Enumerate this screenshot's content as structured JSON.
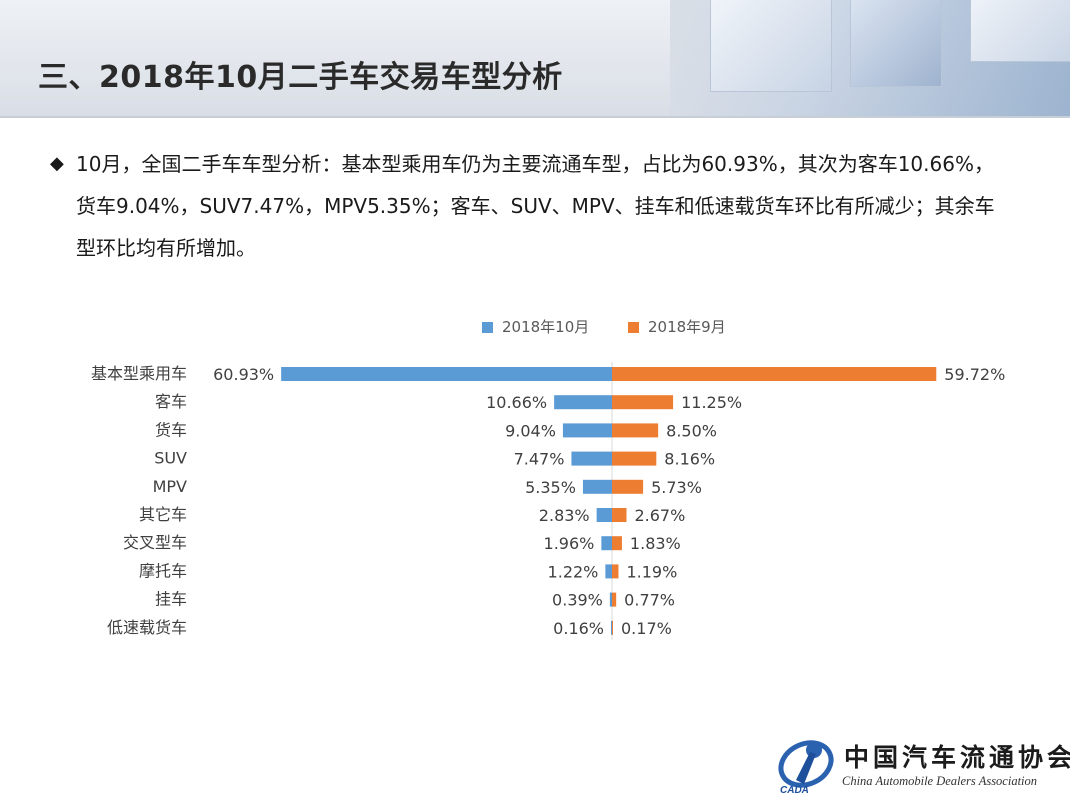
{
  "page": {
    "title": "三、2018年10月二手车交易车型分析",
    "summary": "10月，全国二手车车型分析：基本型乘用车仍为主要流通车型，占比为60.93%，其次为客车10.66%，货车9.04%，SUV7.47%，MPV5.35%；客车、SUV、MPV、挂车和低速载货车环比有所减少；其余车型环比均有所增加。",
    "bullet": "◆"
  },
  "logo": {
    "name_cn": "中国汽车流通协会",
    "name_en": "China Automobile Dealers Association",
    "abbr": "CADA"
  },
  "colors": {
    "oct": "#5b9bd5",
    "sep": "#ed7d31"
  },
  "chart_data": {
    "type": "bar",
    "orientation": "horizontal-diverging",
    "categories": [
      "基本型乘用车",
      "客车",
      "货车",
      "SUV",
      "MPV",
      "其它车",
      "交叉型车",
      "摩托车",
      "挂车",
      "低速载货车"
    ],
    "series": [
      {
        "name": "2018年10月",
        "values": [
          60.93,
          10.66,
          9.04,
          7.47,
          5.35,
          2.83,
          1.96,
          1.22,
          0.39,
          0.16
        ],
        "labels": [
          "60.93%",
          "10.66%",
          "9.04%",
          "7.47%",
          "5.35%",
          "2.83%",
          "1.96%",
          "1.22%",
          "0.39%",
          "0.16%"
        ],
        "side": "left"
      },
      {
        "name": "2018年9月",
        "values": [
          59.72,
          11.25,
          8.5,
          8.16,
          5.73,
          2.67,
          1.83,
          1.19,
          0.77,
          0.17
        ],
        "labels": [
          "59.72%",
          "11.25%",
          "8.50%",
          "8.16%",
          "5.73%",
          "2.67%",
          "1.83%",
          "1.19%",
          "0.77%",
          "0.17%"
        ],
        "side": "right"
      }
    ],
    "unit": "%",
    "legend": "top-center",
    "grid": false
  }
}
